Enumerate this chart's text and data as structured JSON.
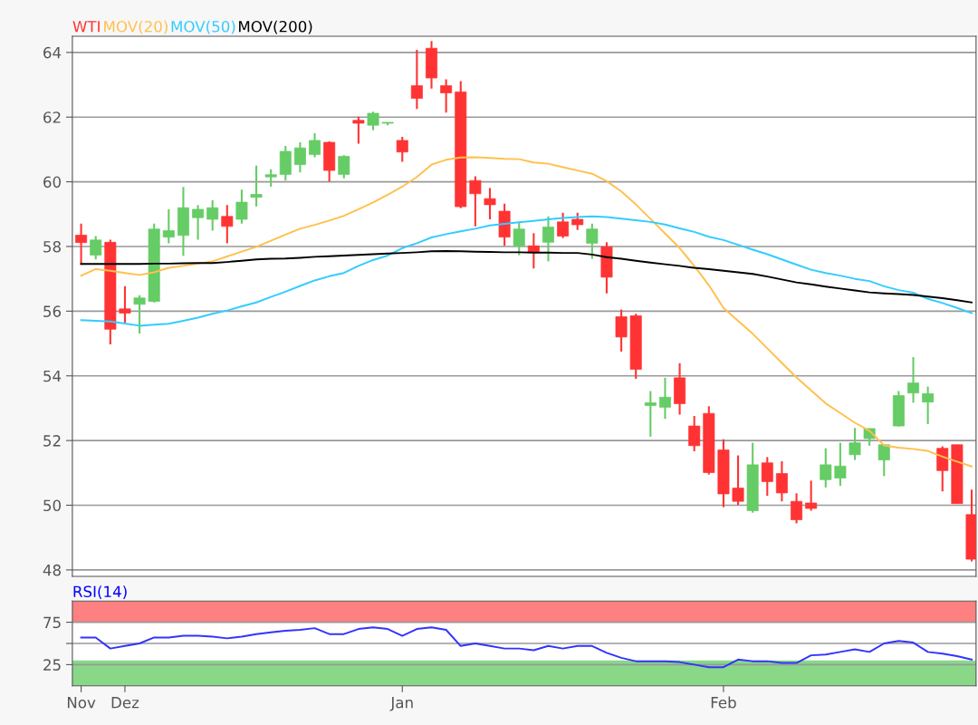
{
  "chart_data": [
    {
      "type": "candlestick",
      "legend": "top left",
      "grid": "y",
      "tick_labels": "y",
      "ylim": [
        47.8,
        64.5
      ],
      "yticks": [
        48,
        50,
        52,
        54,
        56,
        58,
        60,
        62,
        64
      ],
      "categories": [
        null,
        null,
        null,
        null,
        null,
        null,
        null,
        null,
        null,
        null,
        null,
        null,
        null,
        null,
        null,
        null,
        null,
        null,
        null,
        null,
        null,
        null,
        null,
        null,
        null,
        null,
        null,
        null,
        null,
        null,
        null,
        null,
        null,
        null,
        null,
        null,
        null,
        null,
        null,
        null,
        null,
        null,
        null,
        null,
        null,
        null,
        null,
        null,
        null,
        null,
        null,
        null,
        null,
        null,
        null,
        null,
        null,
        null,
        null,
        null,
        null,
        null
      ],
      "series": [
        {
          "name": "WTI",
          "type": "candlestick",
          "color": "#ff3333",
          "colors": [
            "#ff3333",
            "#66cc66",
            "#ff3333",
            "#ff3333",
            "#66cc66",
            "#66cc66",
            "#66cc66",
            "#66cc66",
            "#66cc66",
            "#66cc66",
            "#ff3333",
            "#66cc66",
            "#66cc66",
            "#66cc66",
            "#66cc66",
            "#66cc66",
            "#66cc66",
            "#ff3333",
            "#66cc66",
            "#ff3333",
            "#66cc66",
            "#66cc66",
            "#ff3333",
            "#ff3333",
            "#ff3333",
            "#ff3333",
            "#ff3333",
            "#ff3333",
            "#ff3333",
            "#ff3333",
            "#66cc66",
            "#ff3333",
            "#66cc66",
            "#ff3333",
            "#ff3333",
            "#66cc66",
            "#ff3333",
            "#ff3333",
            "#ff3333",
            "#66cc66",
            "#66cc66",
            "#ff3333",
            "#ff3333",
            "#ff3333",
            "#ff3333",
            "#ff3333",
            "#66cc66",
            "#ff3333",
            "#ff3333",
            "#ff3333",
            "#ff3333",
            "#66cc66",
            "#66cc66",
            "#66cc66",
            "#66cc66",
            "#66cc66",
            "#66cc66",
            "#66cc66",
            "#66cc66",
            "#ff3333",
            "#ff3333",
            "#ff3333"
          ],
          "ohlc": [
            [
              58.35,
              58.71,
              57.43,
              58.12
            ],
            [
              57.73,
              58.32,
              57.6,
              58.2
            ],
            [
              58.13,
              58.21,
              54.97,
              55.44
            ],
            [
              56.07,
              56.77,
              55.64,
              55.94
            ],
            [
              56.21,
              56.49,
              55.31,
              56.41
            ],
            [
              56.3,
              58.71,
              56.27,
              58.54
            ],
            [
              58.29,
              59.15,
              58.1,
              58.49
            ],
            [
              58.34,
              59.84,
              57.71,
              59.2
            ],
            [
              58.89,
              59.28,
              58.21,
              59.15
            ],
            [
              58.84,
              59.43,
              58.49,
              59.2
            ],
            [
              58.93,
              59.28,
              58.1,
              58.62
            ],
            [
              58.84,
              59.76,
              58.71,
              59.37
            ],
            [
              59.52,
              60.5,
              59.24,
              59.61
            ],
            [
              60.15,
              60.39,
              59.85,
              60.22
            ],
            [
              60.23,
              61.11,
              60.04,
              60.94
            ],
            [
              60.53,
              61.22,
              60.29,
              61.05
            ],
            [
              60.84,
              61.5,
              60.76,
              61.28
            ],
            [
              61.22,
              61.25,
              60.01,
              60.35
            ],
            [
              60.23,
              60.82,
              60.11,
              60.79
            ],
            [
              61.9,
              62.01,
              61.18,
              61.81
            ],
            [
              61.75,
              62.17,
              61.59,
              62.12
            ],
            [
              61.81,
              61.84,
              61.75,
              61.84
            ],
            [
              61.28,
              61.39,
              60.62,
              60.92
            ],
            [
              62.97,
              64.08,
              62.25,
              62.58
            ],
            [
              64.13,
              64.35,
              62.88,
              63.21
            ],
            [
              62.97,
              63.17,
              62.14,
              62.75
            ],
            [
              62.78,
              63.11,
              59.18,
              59.23
            ],
            [
              60.04,
              60.17,
              58.62,
              59.63
            ],
            [
              59.48,
              59.81,
              58.84,
              59.29
            ],
            [
              59.09,
              59.32,
              58.02,
              58.29
            ],
            [
              58.02,
              58.74,
              57.73,
              58.54
            ],
            [
              58.02,
              58.41,
              57.32,
              57.82
            ],
            [
              58.13,
              58.93,
              57.54,
              58.6
            ],
            [
              58.76,
              59.04,
              58.26,
              58.32
            ],
            [
              58.84,
              59.04,
              58.51,
              58.67
            ],
            [
              58.1,
              58.71,
              57.62,
              58.54
            ],
            [
              57.99,
              58.13,
              56.55,
              57.05
            ],
            [
              55.83,
              56.05,
              54.75,
              55.2
            ],
            [
              55.86,
              55.92,
              53.91,
              54.2
            ],
            [
              53.08,
              53.53,
              52.12,
              53.17
            ],
            [
              53.03,
              53.94,
              52.67,
              53.34
            ],
            [
              53.94,
              54.39,
              52.8,
              53.14
            ],
            [
              52.45,
              52.76,
              51.67,
              51.84
            ],
            [
              52.84,
              53.06,
              50.95,
              51.01
            ],
            [
              51.71,
              52.04,
              49.94,
              50.35
            ],
            [
              50.53,
              51.54,
              50.01,
              50.12
            ],
            [
              49.83,
              51.93,
              49.77,
              51.25
            ],
            [
              51.31,
              51.49,
              50.29,
              50.73
            ],
            [
              50.98,
              51.36,
              50.12,
              50.38
            ],
            [
              50.12,
              50.37,
              49.44,
              49.55
            ],
            [
              50.07,
              50.76,
              49.83,
              49.9
            ],
            [
              50.79,
              51.76,
              50.55,
              51.25
            ],
            [
              50.84,
              51.93,
              50.6,
              51.21
            ],
            [
              51.56,
              52.39,
              51.4,
              51.93
            ],
            [
              52.06,
              52.37,
              51.84,
              52.37
            ],
            [
              51.4,
              51.87,
              50.9,
              51.87
            ],
            [
              52.45,
              53.53,
              52.43,
              53.39
            ],
            [
              53.47,
              54.58,
              53.17,
              53.78
            ],
            [
              53.19,
              53.67,
              52.51,
              53.45
            ],
            [
              51.76,
              51.82,
              50.43,
              51.07
            ],
            [
              51.87,
              51.87,
              50.05,
              50.05
            ],
            [
              49.71,
              50.48,
              48.26,
              48.33
            ]
          ]
        },
        {
          "name": "MOV(20)",
          "type": "line",
          "color": "#ffc04d",
          "values": [
            57.1,
            57.3,
            57.25,
            57.18,
            57.12,
            57.2,
            57.34,
            57.4,
            57.47,
            57.54,
            57.69,
            57.84,
            57.99,
            58.18,
            58.37,
            58.55,
            58.67,
            58.8,
            58.95,
            59.15,
            59.36,
            59.6,
            59.85,
            60.15,
            60.53,
            60.68,
            60.75,
            60.76,
            60.74,
            60.71,
            60.7,
            60.6,
            60.56,
            60.45,
            60.35,
            60.25,
            60.02,
            59.7,
            59.3,
            58.85,
            58.4,
            57.95,
            57.4,
            56.8,
            56.1,
            55.7,
            55.3,
            54.85,
            54.4,
            53.95,
            53.55,
            53.15,
            52.85,
            52.55,
            52.3,
            51.85,
            51.78,
            51.74,
            51.68,
            51.5,
            51.35,
            51.2
          ]
        },
        {
          "name": "MOV(50)",
          "type": "line",
          "color": "#33ccff",
          "values": [
            55.72,
            55.7,
            55.68,
            55.62,
            55.55,
            55.58,
            55.61,
            55.7,
            55.8,
            55.92,
            56.02,
            56.15,
            56.27,
            56.44,
            56.6,
            56.78,
            56.95,
            57.08,
            57.18,
            57.4,
            57.58,
            57.72,
            57.95,
            58.1,
            58.28,
            58.38,
            58.47,
            58.55,
            58.65,
            58.7,
            58.75,
            58.79,
            58.84,
            58.88,
            58.91,
            58.93,
            58.91,
            58.86,
            58.81,
            58.76,
            58.68,
            58.56,
            58.45,
            58.3,
            58.2,
            58.05,
            57.9,
            57.76,
            57.6,
            57.44,
            57.28,
            57.18,
            57.1,
            57.0,
            56.93,
            56.77,
            56.65,
            56.57,
            56.38,
            56.25,
            56.1,
            55.94
          ]
        },
        {
          "name": "MOV(200)",
          "type": "line",
          "color": "#000000",
          "values": [
            57.46,
            57.46,
            57.46,
            57.46,
            57.46,
            57.47,
            57.47,
            57.48,
            57.49,
            57.49,
            57.52,
            57.56,
            57.6,
            57.62,
            57.63,
            57.65,
            57.68,
            57.7,
            57.72,
            57.74,
            57.76,
            57.78,
            57.8,
            57.82,
            57.85,
            57.86,
            57.85,
            57.84,
            57.83,
            57.82,
            57.82,
            57.81,
            57.81,
            57.8,
            57.8,
            57.75,
            57.67,
            57.62,
            57.56,
            57.5,
            57.45,
            57.4,
            57.34,
            57.3,
            57.25,
            57.2,
            57.15,
            57.07,
            56.98,
            56.89,
            56.83,
            56.76,
            56.7,
            56.64,
            56.58,
            56.55,
            56.53,
            56.5,
            56.45,
            56.4,
            56.34,
            56.27
          ]
        }
      ]
    },
    {
      "type": "line",
      "title": "RSI(14)",
      "grid": "y",
      "ylim": [
        0,
        100
      ],
      "yticks": [
        25,
        {
          "value": 50,
          "label": null
        },
        75
      ],
      "categories": [
        "Nov",
        null,
        null,
        "Dez",
        null,
        null,
        null,
        null,
        null,
        null,
        null,
        null,
        null,
        null,
        null,
        null,
        null,
        null,
        null,
        null,
        null,
        null,
        "Jan",
        null,
        null,
        null,
        null,
        null,
        null,
        null,
        null,
        null,
        null,
        null,
        null,
        null,
        null,
        null,
        null,
        null,
        null,
        null,
        null,
        null,
        "Feb",
        null,
        null,
        null,
        null,
        null,
        null,
        null,
        null,
        null,
        null,
        null,
        null,
        null,
        null,
        null,
        null,
        null
      ],
      "bands": [
        {
          "axis": "y",
          "from": 75,
          "to": 100,
          "color": "#ff8080"
        },
        {
          "axis": "y",
          "from": 0,
          "to": 30,
          "color": "#88d888"
        }
      ],
      "series": [
        {
          "color": "#3333ff",
          "values": [
            57,
            57,
            44,
            47,
            50,
            57,
            57,
            59,
            59,
            58,
            56,
            58,
            61,
            63,
            65,
            66,
            68,
            61,
            61,
            67,
            69,
            67,
            59,
            67,
            69,
            66,
            47,
            50,
            47,
            44,
            44,
            42,
            47,
            44,
            47,
            47,
            39,
            33,
            29,
            29,
            29,
            28,
            25,
            22,
            22,
            31,
            29,
            29,
            27,
            27,
            36,
            37,
            40,
            43,
            40,
            50,
            53,
            51,
            40,
            38,
            35,
            31
          ]
        }
      ]
    }
  ]
}
